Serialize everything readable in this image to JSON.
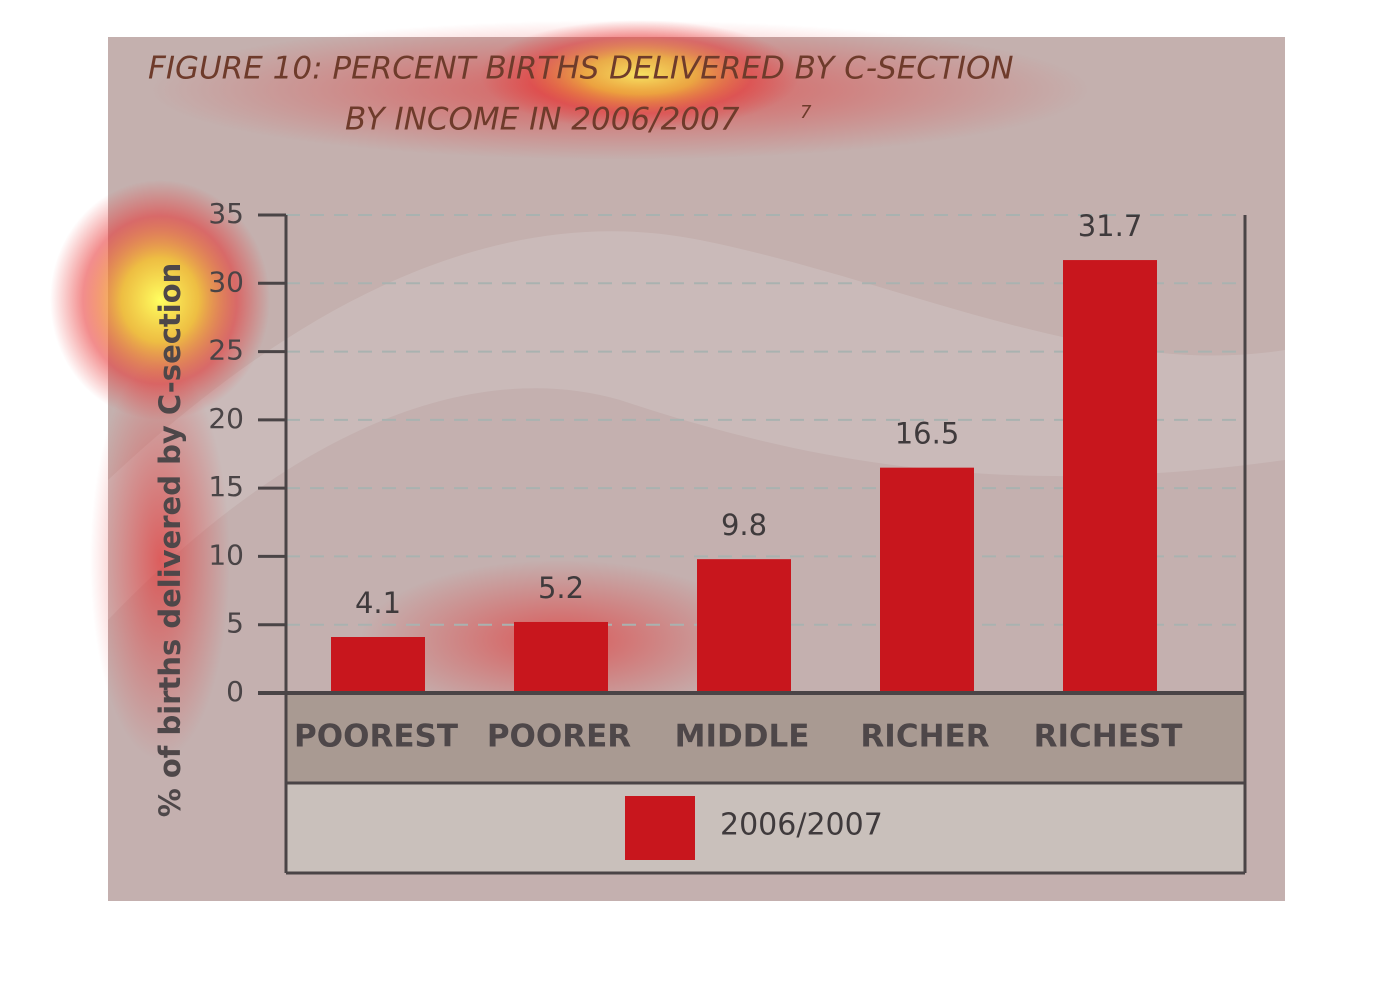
{
  "chart_data": {
    "type": "bar",
    "title_lines": [
      "FIGURE 10: PERCENT BIRTHS DELIVERED BY C-SECTION",
      "BY INCOME IN 2006/2007"
    ],
    "title_note": "7",
    "y_axis_label": "% of births delivered by C-section",
    "categories": [
      "POOREST",
      "POORER",
      "MIDDLE",
      "RICHER",
      "RICHEST"
    ],
    "series": [
      {
        "name": "2006/2007",
        "color": "#c8161d",
        "values": [
          4.1,
          5.2,
          9.8,
          16.5,
          31.7
        ]
      }
    ],
    "ylim": [
      0,
      35
    ],
    "yticks": [
      0,
      5,
      10,
      15,
      20,
      25,
      30,
      35
    ],
    "grid": true,
    "legend": "bottom"
  }
}
